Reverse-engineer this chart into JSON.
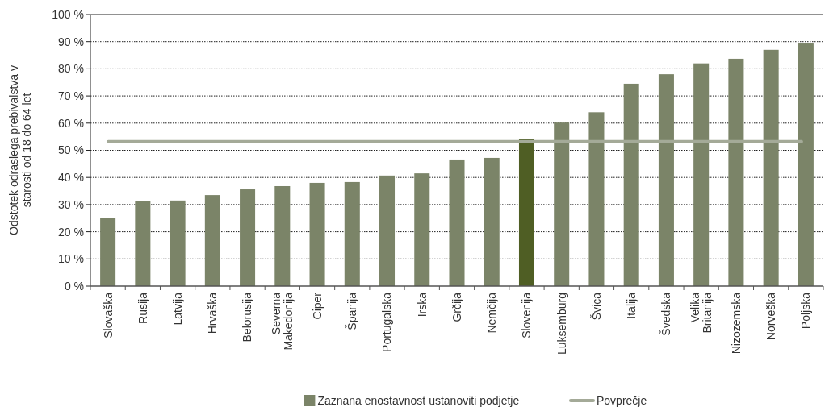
{
  "chart_data": {
    "type": "bar",
    "ylabel": "Odstotek odraslega prebivalstva v starosti od 18 do 64 let",
    "categories": [
      "Slovaška",
      "Rusija",
      "Latvija",
      "Hrvaška",
      "Belorusija",
      "Severna Makedonija",
      "Ciper",
      "Španija",
      "Portugalska",
      "Irska",
      "Grčija",
      "Nemčija",
      "Slovenija",
      "Luksemburg",
      "Švica",
      "Italija",
      "Švedska",
      "Velika Britanija",
      "Nizozemska",
      "Norveška",
      "Poljska"
    ],
    "series": [
      {
        "name": "Zaznana enostavnost ustanoviti podjetje",
        "color": "#7b8468",
        "colors": [
          "#7b8468",
          "#7b8468",
          "#7b8468",
          "#7b8468",
          "#7b8468",
          "#7b8468",
          "#7b8468",
          "#7b8468",
          "#7b8468",
          "#7b8468",
          "#7b8468",
          "#7b8468",
          "#4f5e24",
          "#7b8468",
          "#7b8468",
          "#7b8468",
          "#7b8468",
          "#7b8468",
          "#7b8468",
          "#7b8468",
          "#7b8468"
        ],
        "values": [
          25,
          31.2,
          31.5,
          33.5,
          35.6,
          36.8,
          38,
          38.3,
          40.7,
          41.5,
          46.6,
          47.2,
          54,
          60.2,
          64,
          74.5,
          78,
          82,
          83.7,
          87,
          89.6
        ]
      }
    ],
    "ref_lines": [
      {
        "axis": "y",
        "value": 53.2,
        "label": "Povprečje",
        "color": "#a4aa98"
      }
    ],
    "ylim": [
      0,
      100
    ],
    "yticks": [
      {
        "value": 0,
        "label": "0 %"
      },
      {
        "value": 10,
        "label": "10 %"
      },
      {
        "value": 20,
        "label": "20 %"
      },
      {
        "value": 30,
        "label": "30 %"
      },
      {
        "value": 40,
        "label": "40 %"
      },
      {
        "value": 50,
        "label": "50 %"
      },
      {
        "value": 60,
        "label": "60 %"
      },
      {
        "value": 70,
        "label": "70 %"
      },
      {
        "value": 80,
        "label": "80 %"
      },
      {
        "value": 90,
        "label": "90 %"
      },
      {
        "value": 100,
        "label": "100 %"
      }
    ],
    "grid": "y",
    "legend": "bottom"
  }
}
